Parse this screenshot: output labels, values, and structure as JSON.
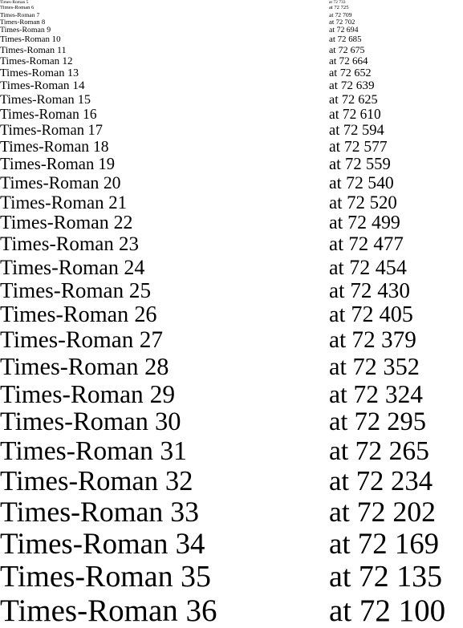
{
  "lines": [
    {
      "name": "Times-Roman 5",
      "position": "at 72 733"
    },
    {
      "name": "Times-Roman 6",
      "position": "at 72 725"
    },
    {
      "name": "Times-Roman 7",
      "position": "at 72 709"
    },
    {
      "name": "Times-Roman 8",
      "position": "at 72 702"
    },
    {
      "name": "Times-Roman 9",
      "position": "at 72 694"
    },
    {
      "name": "Times-Roman 10",
      "position": "at 72 685"
    },
    {
      "name": "Times-Roman 11",
      "position": "at 72 675"
    },
    {
      "name": "Times-Roman 12",
      "position": "at 72 664"
    },
    {
      "name": "Times-Roman 13",
      "position": "at 72 652"
    },
    {
      "name": "Times-Roman 14",
      "position": "at 72 639"
    },
    {
      "name": "Times-Roman 15",
      "position": "at 72 625"
    },
    {
      "name": "Times-Roman 16",
      "position": "at 72 610"
    },
    {
      "name": "Times-Roman 17",
      "position": "at 72 594"
    },
    {
      "name": "Times-Roman 18",
      "position": "at 72 577"
    },
    {
      "name": "Times-Roman 19",
      "position": "at 72 559"
    },
    {
      "name": "Times-Roman 20",
      "position": "at 72 540"
    },
    {
      "name": "Times-Roman 21",
      "position": "at 72 520"
    },
    {
      "name": "Times-Roman 22",
      "position": "at 72 499"
    },
    {
      "name": "Times-Roman 23",
      "position": "at 72 477"
    },
    {
      "name": "Times-Roman 24",
      "position": "at 72 454"
    },
    {
      "name": "Times-Roman 25",
      "position": "at 72 430"
    },
    {
      "name": "Times-Roman 26",
      "position": "at 72 405"
    },
    {
      "name": "Times-Roman 27",
      "position": "at 72 379"
    },
    {
      "name": "Times-Roman 28",
      "position": "at 72 352"
    },
    {
      "name": "Times-Roman 29",
      "position": "at 72 324"
    },
    {
      "name": "Times-Roman 30",
      "position": "at 72 295"
    },
    {
      "name": "Times-Roman 31",
      "position": "at 72 265"
    },
    {
      "name": "Times-Roman 32",
      "position": "at 72 234"
    },
    {
      "name": "Times-Roman 33",
      "position": "at 72 202"
    },
    {
      "name": "Times-Roman 34",
      "position": "at 72 169"
    },
    {
      "name": "Times-Roman 35",
      "position": "at 72 135"
    },
    {
      "name": "Times-Roman 36",
      "position": "at 72 100"
    }
  ]
}
